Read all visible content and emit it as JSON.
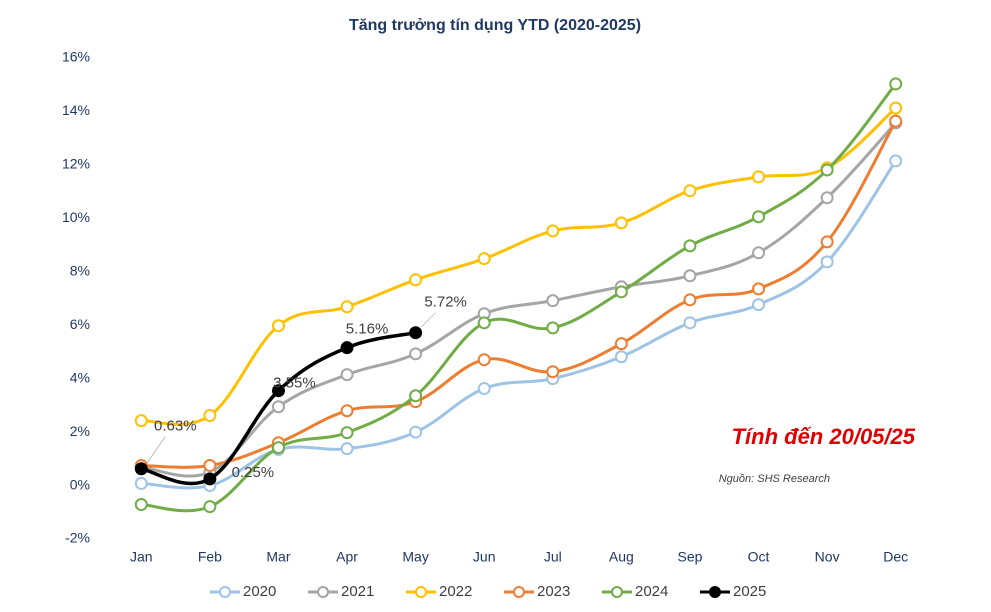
{
  "chart_data": {
    "type": "line",
    "title": "Tăng trưởng tín dụng YTD (2020-2025)",
    "categories": [
      "Jan",
      "Feb",
      "Mar",
      "Apr",
      "May",
      "Jun",
      "Jul",
      "Aug",
      "Sep",
      "Oct",
      "Nov",
      "Dec"
    ],
    "series": [
      {
        "name": "2020",
        "color": "#9dc3e6",
        "values": [
          0.08,
          0.0,
          1.35,
          1.38,
          2.0,
          3.63,
          4.0,
          4.82,
          6.09,
          6.77,
          8.37,
          12.15
        ]
      },
      {
        "name": "2021",
        "color": "#a5a5a5",
        "values": [
          0.7,
          0.5,
          2.95,
          4.15,
          4.93,
          6.43,
          6.92,
          7.44,
          7.85,
          8.71,
          10.77,
          13.57
        ]
      },
      {
        "name": "2022",
        "color": "#ffc000",
        "values": [
          2.43,
          2.62,
          5.98,
          6.69,
          7.7,
          8.49,
          9.53,
          9.83,
          11.03,
          11.55,
          11.89,
          14.13
        ]
      },
      {
        "name": "2023",
        "color": "#ed7d31",
        "values": [
          0.75,
          0.75,
          1.6,
          2.8,
          3.14,
          4.71,
          4.26,
          5.31,
          6.95,
          7.36,
          9.12,
          13.64
        ]
      },
      {
        "name": "2024",
        "color": "#70ad47",
        "values": [
          -0.71,
          -0.79,
          1.42,
          1.98,
          3.36,
          6.09,
          5.9,
          7.25,
          8.97,
          10.06,
          11.81,
          15.03
        ]
      },
      {
        "name": "2025",
        "color": "#000000",
        "values": [
          0.63,
          0.25,
          3.55,
          5.16,
          5.72,
          null,
          null,
          null,
          null,
          null,
          null,
          null
        ],
        "value_labels": [
          "0.63%",
          "0.25%",
          "3.55%",
          "5.16%",
          "5.72%",
          null,
          null,
          null,
          null,
          null,
          null,
          null
        ]
      }
    ],
    "ylim": [
      -2,
      16
    ],
    "yticks": [
      {
        "value": -2,
        "label": "-2%"
      },
      {
        "value": 0,
        "label": "0%"
      },
      {
        "value": 2,
        "label": "2%"
      },
      {
        "value": 4,
        "label": "4%"
      },
      {
        "value": 6,
        "label": "6%"
      },
      {
        "value": 8,
        "label": "8%"
      },
      {
        "value": 10,
        "label": "10%"
      },
      {
        "value": 12,
        "label": "12%"
      },
      {
        "value": 14,
        "label": "14%"
      },
      {
        "value": 16,
        "label": "16%"
      }
    ],
    "annotations": [
      "Tính đến 20/05/25",
      "Nguồn: SHS Research"
    ],
    "legend": "bottom"
  }
}
